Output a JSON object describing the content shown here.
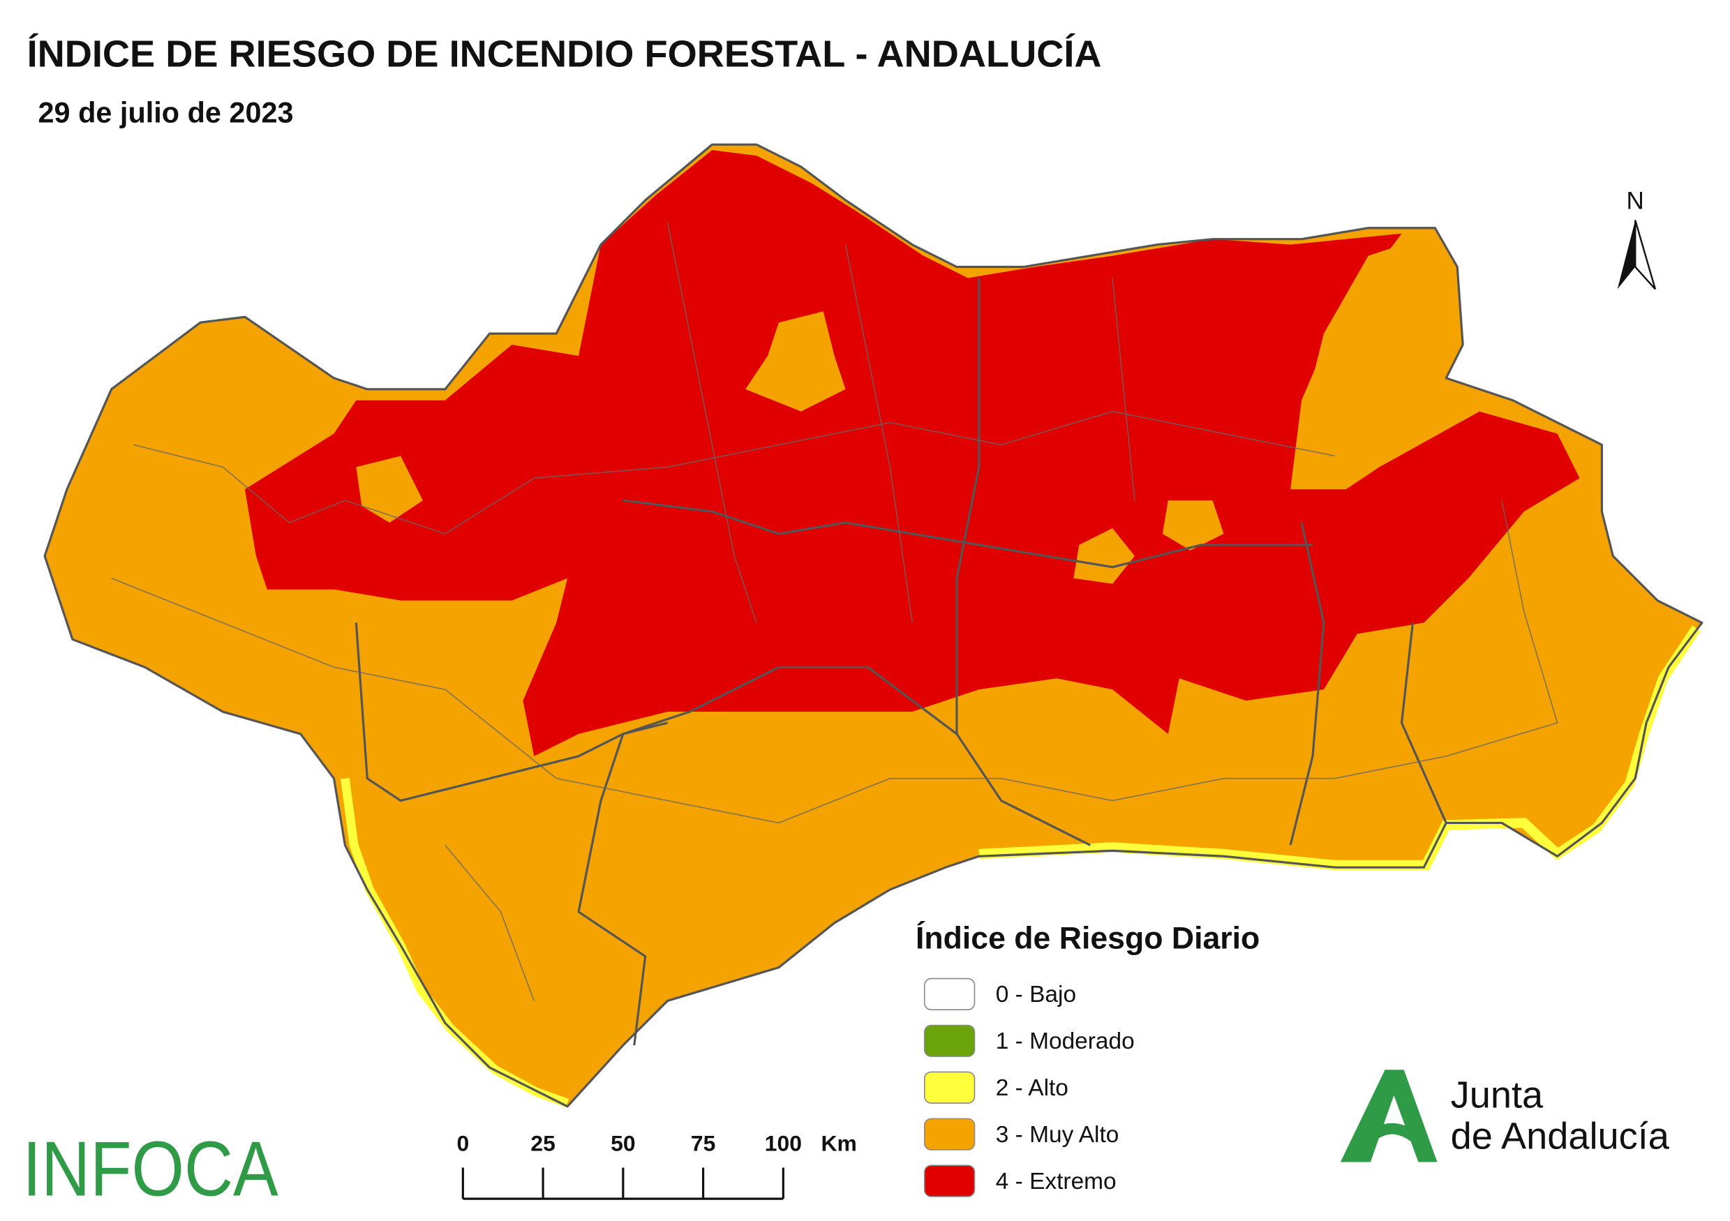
{
  "header": {
    "title": "ÍNDICE DE RIESGO DE INCENDIO FORESTAL - ANDALUCÍA",
    "date": "29 de julio de 2023"
  },
  "north": "N",
  "legend": {
    "title": "Índice de Riesgo Diario",
    "items": [
      {
        "label": "0 - Bajo",
        "color": "#ffffff"
      },
      {
        "label": "1 - Moderado",
        "color": "#6aa30a"
      },
      {
        "label": "2 - Alto",
        "color": "#ffff3c"
      },
      {
        "label": "3 - Muy Alto",
        "color": "#f5a300"
      },
      {
        "label": "4 - Extremo",
        "color": "#e00000"
      }
    ]
  },
  "scale_bar": {
    "ticks": [
      0,
      25,
      50,
      75,
      100
    ],
    "unit": "Km"
  },
  "logos": {
    "infoca": "INFOCA",
    "junta": [
      "Junta",
      "de Andalucía"
    ]
  }
}
